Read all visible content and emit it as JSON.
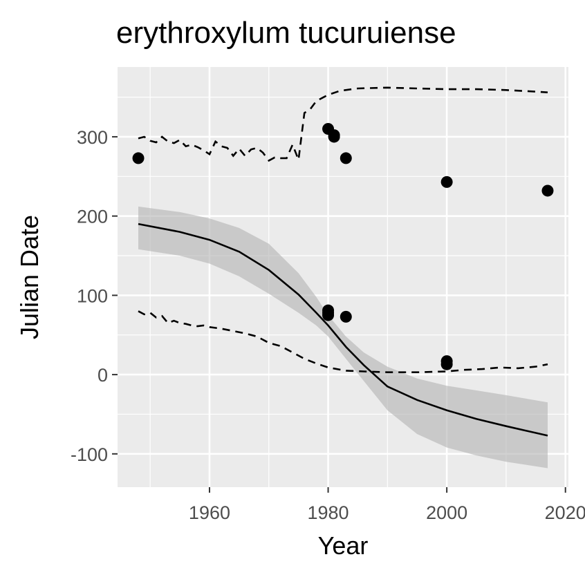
{
  "chart_data": {
    "type": "scatter",
    "title": "erythroxylum tucuruiense",
    "xlabel": "Year",
    "ylabel": "Julian Date",
    "xlim": [
      1944.5,
      2020.5
    ],
    "ylim": [
      -142,
      388
    ],
    "x_ticks": [
      1960,
      1980,
      2000,
      2020
    ],
    "x_tick_labels": [
      "1960",
      "1980",
      "2000",
      "2020"
    ],
    "y_ticks": [
      -100,
      0,
      100,
      200,
      300
    ],
    "y_tick_labels": [
      "-100",
      "0",
      "100",
      "200",
      "300"
    ],
    "grid": true,
    "legend": "none",
    "colors": {
      "panel_background": "#ebebeb",
      "grid_major": "#ffffff",
      "points": "#000000",
      "ribbon": "#b3b3b3",
      "trend_line": "#000000",
      "bounds_line": "#000000"
    },
    "points": [
      {
        "x": 1948,
        "y": 273
      },
      {
        "x": 1980,
        "y": 310
      },
      {
        "x": 1981,
        "y": 302
      },
      {
        "x": 1981,
        "y": 300
      },
      {
        "x": 1983,
        "y": 273
      },
      {
        "x": 2000,
        "y": 243
      },
      {
        "x": 2017,
        "y": 232
      },
      {
        "x": 1980,
        "y": 81
      },
      {
        "x": 1980,
        "y": 78
      },
      {
        "x": 1980,
        "y": 75
      },
      {
        "x": 1983,
        "y": 73
      },
      {
        "x": 2000,
        "y": 17
      },
      {
        "x": 2000,
        "y": 13
      }
    ],
    "trend_line": {
      "x": [
        1948,
        1955,
        1960,
        1965,
        1970,
        1975,
        1978,
        1980,
        1983,
        1986,
        1990,
        1995,
        2000,
        2005,
        2010,
        2017
      ],
      "y": [
        190,
        180,
        170,
        155,
        132,
        101,
        78,
        62,
        35,
        12,
        -15,
        -32,
        -45,
        -56,
        -65,
        -77
      ]
    },
    "confidence_band": {
      "x": [
        1948,
        1955,
        1960,
        1965,
        1970,
        1975,
        1978,
        1980,
        1983,
        1986,
        1990,
        1995,
        2000,
        2005,
        2010,
        2017
      ],
      "upper": [
        212,
        205,
        197,
        185,
        165,
        128,
        98,
        75,
        48,
        28,
        10,
        -5,
        -14,
        -20,
        -26,
        -35
      ],
      "lower": [
        158,
        150,
        140,
        124,
        102,
        78,
        62,
        48,
        20,
        -8,
        -45,
        -75,
        -92,
        -102,
        -110,
        -118
      ]
    },
    "upper_bound": {
      "x": [
        1948,
        1949,
        1950,
        1951,
        1952,
        1953,
        1954,
        1955,
        1956,
        1957,
        1958,
        1959,
        1960,
        1961,
        1962,
        1963,
        1964,
        1965,
        1966,
        1967,
        1968,
        1969,
        1970,
        1971,
        1972,
        1973,
        1974,
        1975,
        1976,
        1977,
        1978,
        1979,
        1980,
        1982,
        1985,
        1990,
        1995,
        2000,
        2005,
        2010,
        2015,
        2017
      ],
      "y": [
        298,
        300,
        295,
        293,
        300,
        294,
        292,
        296,
        288,
        290,
        287,
        283,
        278,
        294,
        288,
        286,
        276,
        285,
        276,
        284,
        286,
        280,
        270,
        274,
        273,
        273,
        290,
        271,
        330,
        335,
        345,
        349,
        353,
        358,
        361,
        362,
        361,
        360,
        360,
        359,
        357,
        356
      ]
    },
    "lower_bound": {
      "x": [
        1948,
        1949,
        1950,
        1951,
        1952,
        1953,
        1954,
        1955,
        1956,
        1957,
        1958,
        1959,
        1960,
        1962,
        1964,
        1966,
        1968,
        1970,
        1972,
        1974,
        1976,
        1978,
        1980,
        1983,
        1986,
        1990,
        1995,
        2000,
        2003,
        2006,
        2009,
        2012,
        2015,
        2017
      ],
      "y": [
        80,
        76,
        78,
        72,
        74,
        65,
        68,
        65,
        64,
        62,
        61,
        62,
        60,
        58,
        55,
        52,
        48,
        40,
        36,
        28,
        20,
        14,
        9,
        5,
        4,
        3,
        3,
        4,
        6,
        7,
        9,
        8,
        10,
        13
      ]
    }
  }
}
